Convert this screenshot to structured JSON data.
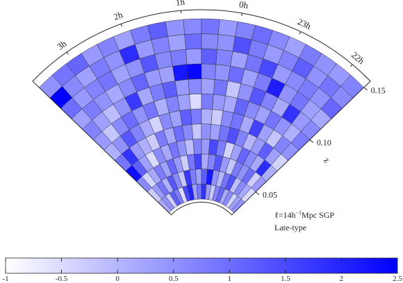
{
  "chart_data": {
    "type": "wedge",
    "annotation": [
      "ℓ=14h",
      "−1",
      "Mpc SGP"
    ],
    "sample": "Late-type",
    "z_label": "z",
    "zlim": [
      0.028,
      0.156
    ],
    "zticks": [
      0.05,
      {
        "value": 0.1,
        "label": "0.10"
      },
      0.15
    ],
    "ra_lim": [
      3.73,
      21.6
    ],
    "ra_ticks": [
      {
        "value": 3,
        "label": "3h"
      },
      {
        "value": 2,
        "label": "2h"
      },
      {
        "value": 1,
        "label": "1h"
      },
      {
        "value": 0,
        "label": "0h"
      },
      {
        "value": 23,
        "label": "23h"
      },
      {
        "value": 22,
        "label": "22h"
      }
    ],
    "colormap": [
      "#ffffff",
      "#0000ff"
    ],
    "clim": [
      -1,
      2.5
    ],
    "cticks": [
      -1,
      -0.5,
      0,
      0.5,
      1,
      1.5,
      2,
      2.5
    ],
    "cells": {
      "z_edges": [
        0.03,
        0.04,
        0.05,
        0.06,
        0.07,
        0.08,
        0.09,
        0.1,
        0.11,
        0.12,
        0.13,
        0.14,
        0.15
      ],
      "values": [
        [
          0.2,
          0.5,
          -0.3,
          1.2,
          0.8,
          -0.5,
          1.5,
          2.0,
          0.3,
          0.9,
          1.8,
          0.4,
          -0.2,
          0.7,
          1.1,
          0.2,
          0.6,
          -0.4,
          0.3,
          0.5
        ],
        [
          -0.3,
          0.4,
          0.9,
          0.1,
          1.3,
          0.6,
          -0.2,
          1.7,
          0.8,
          0.3,
          1.2,
          2.2,
          0.5,
          0.0,
          0.9,
          1.4,
          -0.1,
          0.6,
          0.2,
          -0.5
        ],
        [
          0.6,
          -0.4,
          0.2,
          0.8,
          0.3,
          1.1,
          0.4,
          -0.3,
          0.9,
          1.6,
          0.2,
          0.7,
          1.3,
          0.4,
          -0.2,
          0.8,
          0.5,
          1.0,
          -0.3,
          0.4
        ],
        [
          2.3,
          1.2,
          0.3,
          -0.5,
          0.6,
          0.2,
          0.9,
          0.5,
          -0.1,
          0.7,
          0.4,
          1.5,
          0.8,
          -0.4,
          0.3,
          1.1,
          0.6,
          0.2,
          1.9,
          0.1
        ],
        [
          0.9,
          1.8,
          0.4,
          0.1,
          -0.3,
          0.8,
          0.2,
          1.0,
          0.6,
          -0.2,
          0.5,
          0.3,
          0.9,
          1.4,
          0.7,
          0.0,
          0.4,
          1.2,
          0.3,
          -0.4
        ],
        [
          0.1,
          0.5,
          1.3,
          0.7,
          0.2,
          -0.4,
          0.6,
          0.3,
          1.2,
          0.8,
          0.1,
          -0.3,
          0.6,
          0.9,
          0.2,
          1.6,
          0.3,
          -0.2,
          0.7,
          0.5
        ],
        [
          0.4,
          -0.2,
          0.6,
          1.0,
          0.5,
          0.9,
          0.1,
          0.7,
          0.3,
          -0.5,
          0.8,
          0.4,
          0.2,
          1.1,
          0.6,
          0.3,
          0.9,
          0.5,
          0.1,
          0.8
        ],
        [
          0.7,
          0.3,
          -0.1,
          0.5,
          1.7,
          0.2,
          0.8,
          1.2,
          0.4,
          0.6,
          0.3,
          0.9,
          -0.2,
          0.5,
          1.3,
          0.7,
          0.2,
          1.8,
          0.4,
          0.6
        ],
        [
          0.3,
          0.8,
          0.5,
          0.2,
          0.6,
          1.1,
          0.4,
          0.3,
          2.2,
          2.4,
          0.7,
          0.5,
          1.0,
          0.3,
          0.8,
          2.1,
          0.5,
          0.9,
          0.3,
          0.2
        ],
        [
          1.0,
          0.4,
          0.7,
          0.9,
          0.3,
          0.5,
          1.3,
          0.6,
          0.8,
          0.4,
          1.2,
          0.7,
          0.3,
          0.9,
          1.5,
          0.4,
          0.6,
          0.8,
          0.5,
          1.1
        ],
        [
          2.5,
          0.6,
          0.3,
          0.8,
          0.5,
          1.9,
          0.4,
          0.7,
          0.3,
          1.0,
          0.6,
          0.5,
          1.4,
          0.8,
          0.4,
          0.7,
          1.2,
          0.5,
          0.9,
          0.6
        ],
        [
          0.5,
          0.9,
          1.1,
          0.4,
          0.7,
          0.3,
          0.8,
          1.2,
          0.5,
          0.6,
          0.9,
          0.4,
          0.7,
          1.0,
          0.6,
          0.3,
          0.8,
          0.5,
          0.4,
          0.7
        ]
      ]
    }
  }
}
